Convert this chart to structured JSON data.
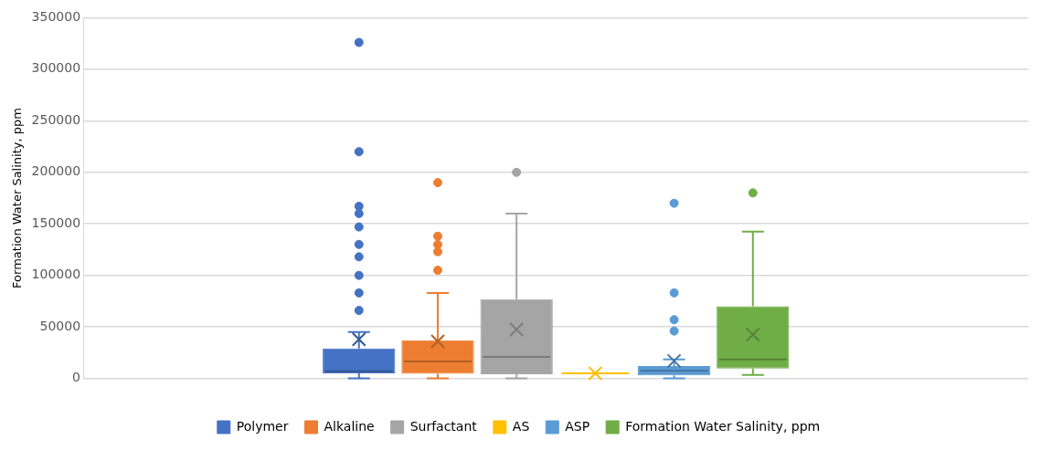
{
  "chart_data": {
    "type": "box",
    "ylabel": "Formation Water Salinity, ppm",
    "categories": [
      null
    ],
    "ylim": [
      0,
      350000
    ],
    "yticks": [
      0,
      50000,
      100000,
      150000,
      200000,
      250000,
      300000,
      350000
    ],
    "grid": "y",
    "legend": "bottom",
    "marker": "circle",
    "series": [
      {
        "name": "Polymer",
        "color": "#4472c4",
        "boxes": [
          {
            "low": 0,
            "q1": 5000,
            "median": 7000,
            "q3": 29000,
            "high": 45000,
            "mean": 38000,
            "outliers": [
              326000,
              220000,
              167000,
              160000,
              147000,
              130000,
              118000,
              100000,
              83000,
              66000
            ]
          }
        ]
      },
      {
        "name": "Alkaline",
        "color": "#ed7d31",
        "boxes": [
          {
            "low": 0,
            "q1": 4500,
            "median": 16500,
            "q3": 37000,
            "high": 83000,
            "mean": 36000,
            "outliers": [
              190000,
              138000,
              130000,
              123000,
              105000
            ]
          }
        ]
      },
      {
        "name": "Surfactant",
        "color": "#a5a5a5",
        "boxes": [
          {
            "low": 0,
            "q1": 4000,
            "median": 21000,
            "q3": 77000,
            "high": 160000,
            "mean": 47500,
            "outliers": [
              200000
            ]
          }
        ]
      },
      {
        "name": "AS",
        "color": "#ffc000",
        "boxes": [
          {
            "low": 5000,
            "q1": 5000,
            "median": 5000,
            "q3": 5000,
            "high": 5000,
            "mean": 5000
          }
        ]
      },
      {
        "name": "ASP",
        "color": "#5b9bd5",
        "boxes": [
          {
            "low": 0,
            "q1": 3000,
            "median": 7500,
            "q3": 12000,
            "high": 18500,
            "mean": 17000,
            "outliers": [
              170000,
              83000,
              57000,
              46000
            ]
          }
        ]
      },
      {
        "name": "Formation Water Salinity, ppm",
        "color": "#70ad47",
        "boxes": [
          {
            "low": 3500,
            "q1": 9500,
            "median": 18500,
            "q3": 70000,
            "high": 142500,
            "mean": 42500,
            "outliers": [
              180000
            ]
          }
        ]
      }
    ]
  }
}
